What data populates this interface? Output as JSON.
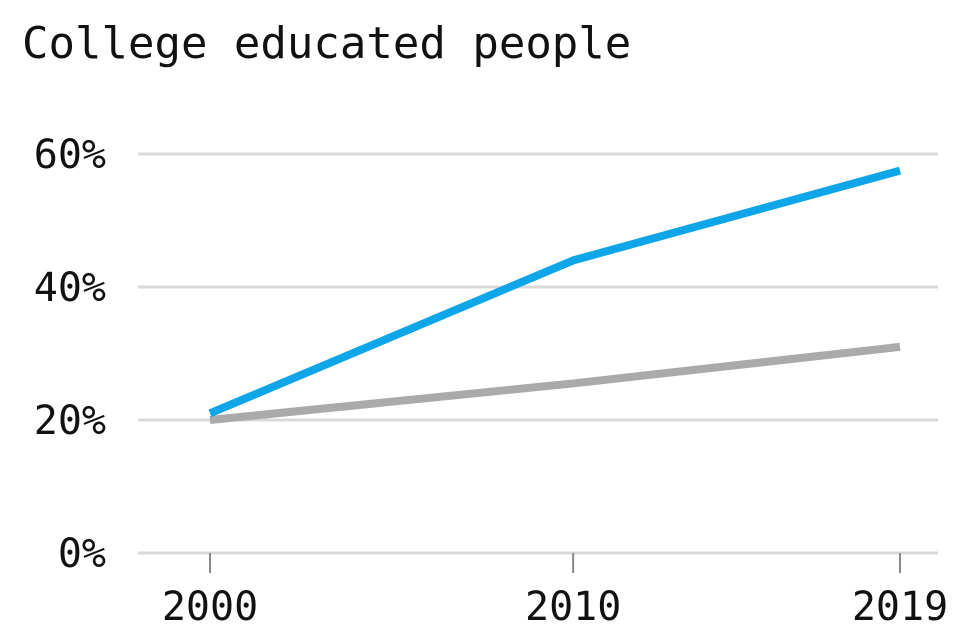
{
  "chart_data": {
    "type": "line",
    "title": "College educated people",
    "xlabel": "",
    "ylabel": "",
    "x": [
      2000,
      2010,
      2019
    ],
    "x_tick_labels": [
      "2000",
      "2010",
      "2019"
    ],
    "y_ticks": [
      0,
      20,
      40,
      60
    ],
    "y_tick_labels": [
      "0%",
      "20%",
      "40%",
      "60%"
    ],
    "ylim": [
      0,
      60
    ],
    "grid": true,
    "legend": "none",
    "series": [
      {
        "values": [
          21,
          44,
          57.5
        ],
        "color": "#0ea5e9"
      },
      {
        "values": [
          20,
          25.5,
          31
        ],
        "color": "#aaaaaa"
      }
    ],
    "grid_color": "#d9d9d9",
    "text_color": "#111111"
  }
}
